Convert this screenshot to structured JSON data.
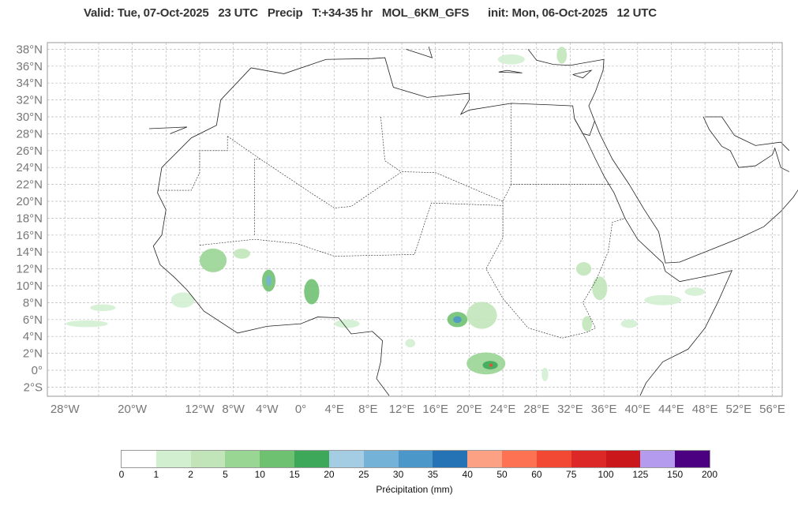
{
  "title": {
    "valid": "Valid: Tue, 07-Oct-2025   23 UTC",
    "field": "Precip",
    "lead": "T:+34-35 hr",
    "model": "MOL_6KM_GFS",
    "init": "init: Mon, 06-Oct-2025   12 UTC"
  },
  "map": {
    "lat_ticks": [
      "38°N",
      "36°N",
      "34°N",
      "32°N",
      "30°N",
      "28°N",
      "26°N",
      "24°N",
      "22°N",
      "20°N",
      "18°N",
      "16°N",
      "14°N",
      "12°N",
      "10°N",
      "8°N",
      "6°N",
      "4°N",
      "2°N",
      "0°",
      "2°S"
    ],
    "lat_values": [
      38,
      36,
      34,
      32,
      30,
      28,
      26,
      24,
      22,
      20,
      18,
      16,
      14,
      12,
      10,
      8,
      6,
      4,
      2,
      0,
      -2
    ],
    "lon_ticks": [
      "28°W",
      "20°W",
      "12°W",
      "8°W",
      "4°W",
      "0°",
      "4°E",
      "8°E",
      "12°E",
      "16°E",
      "20°E",
      "24°E",
      "28°E",
      "32°E",
      "36°E",
      "40°E",
      "44°E",
      "48°E",
      "52°E",
      "56°E"
    ],
    "lon_values": [
      -28,
      -20,
      -12,
      -8,
      -4,
      0,
      4,
      8,
      12,
      16,
      20,
      24,
      28,
      32,
      36,
      40,
      44,
      48,
      52,
      56
    ],
    "extent": {
      "lon": [
        -29.5,
        57.5
      ],
      "lat": [
        -3,
        39
      ]
    },
    "precip_cells": [
      {
        "lon": -10.4,
        "lat": 13,
        "rx": 1.6,
        "ry": 1.4,
        "mm": 5
      },
      {
        "lon": -7,
        "lat": 13.8,
        "rx": 1,
        "ry": 0.6,
        "mm": 2
      },
      {
        "lon": -3.8,
        "lat": 10.6,
        "rx": 0.8,
        "ry": 1.3,
        "mm": 10
      },
      {
        "lon": -3.8,
        "lat": 10.6,
        "rx": 0.3,
        "ry": 0.6,
        "mm": 25
      },
      {
        "lon": 1.3,
        "lat": 9.3,
        "rx": 0.9,
        "ry": 1.5,
        "mm": 10
      },
      {
        "lon": 18.6,
        "lat": 6,
        "rx": 1.2,
        "ry": 0.9,
        "mm": 10
      },
      {
        "lon": 18.6,
        "lat": 6,
        "rx": 0.5,
        "ry": 0.4,
        "mm": 30
      },
      {
        "lon": 21.5,
        "lat": 6.5,
        "rx": 1.8,
        "ry": 1.6,
        "mm": 2
      },
      {
        "lon": 22,
        "lat": 0.8,
        "rx": 2.3,
        "ry": 1.3,
        "mm": 5
      },
      {
        "lon": 22.5,
        "lat": 0.6,
        "rx": 0.9,
        "ry": 0.5,
        "mm": 15
      },
      {
        "lon": 22.6,
        "lat": 0.6,
        "rx": 0.2,
        "ry": 0.2,
        "mm": 60
      },
      {
        "lon": 33.6,
        "lat": 12,
        "rx": 0.9,
        "ry": 0.8,
        "mm": 2
      },
      {
        "lon": 35.5,
        "lat": 9.7,
        "rx": 0.9,
        "ry": 1.4,
        "mm": 2
      },
      {
        "lon": 43,
        "lat": 8.3,
        "rx": 2.2,
        "ry": 0.6,
        "mm": 1
      },
      {
        "lon": 46.8,
        "lat": 9.3,
        "rx": 1.2,
        "ry": 0.5,
        "mm": 1
      },
      {
        "lon": 34,
        "lat": 5.5,
        "rx": 0.6,
        "ry": 0.9,
        "mm": 2
      },
      {
        "lon": 39,
        "lat": 5.5,
        "rx": 1,
        "ry": 0.5,
        "mm": 1
      },
      {
        "lon": -14,
        "lat": 8.3,
        "rx": 1.4,
        "ry": 0.9,
        "mm": 1
      },
      {
        "lon": -25.4,
        "lat": 5.5,
        "rx": 2.5,
        "ry": 0.4,
        "mm": 1
      },
      {
        "lon": -23.5,
        "lat": 7.4,
        "rx": 1.5,
        "ry": 0.4,
        "mm": 1
      },
      {
        "lon": 5.5,
        "lat": 5.5,
        "rx": 1.5,
        "ry": 0.5,
        "mm": 1
      },
      {
        "lon": 13,
        "lat": 3.2,
        "rx": 0.6,
        "ry": 0.5,
        "mm": 1
      },
      {
        "lon": 25,
        "lat": 36.8,
        "rx": 1.6,
        "ry": 0.6,
        "mm": 1
      },
      {
        "lon": 31,
        "lat": 37.3,
        "rx": 0.6,
        "ry": 1,
        "mm": 2
      },
      {
        "lon": 29,
        "lat": -0.5,
        "rx": 0.4,
        "ry": 0.8,
        "mm": 1
      }
    ]
  },
  "colorbar": {
    "title": "Précipitation (mm)",
    "labels": [
      "0",
      "1",
      "2",
      "5",
      "10",
      "15",
      "20",
      "25",
      "30",
      "35",
      "40",
      "50",
      "60",
      "75",
      "100",
      "125",
      "150",
      "200"
    ],
    "thresholds": [
      0,
      1,
      2,
      5,
      10,
      15,
      20,
      25,
      30,
      35,
      40,
      50,
      60,
      75,
      100,
      125,
      150,
      200
    ],
    "colors": [
      "#ffffff",
      "#d2efd0",
      "#c1e5b9",
      "#99d593",
      "#6fc172",
      "#3ea85a",
      "#a4cce3",
      "#74b2d8",
      "#4b97c9",
      "#2573b5",
      "#fca183",
      "#fc7252",
      "#f24935",
      "#dc2827",
      "#ca171c",
      "#b49bee",
      "#4b0082"
    ]
  }
}
